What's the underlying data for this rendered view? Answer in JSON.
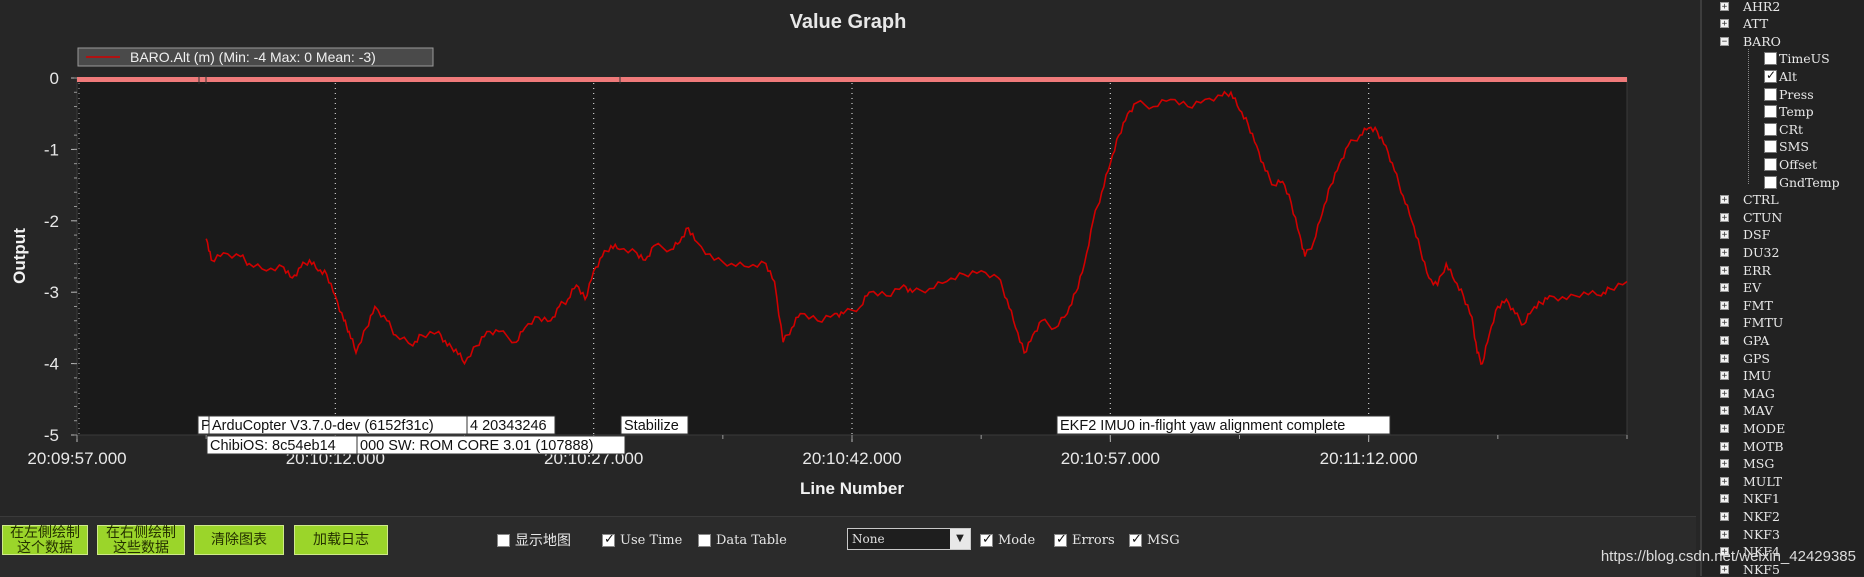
{
  "graph": {
    "title": "Value Graph",
    "xlabel": "Line Number",
    "ylabel": "Output",
    "legend": "BARO.Alt (m) (Min: -4 Max: 0 Mean: -3)",
    "annotations": [
      {
        "text": "P",
        "row": 1
      },
      {
        "text": "ArduCopter V3.7.0-dev (6152f31c)",
        "row": 1
      },
      {
        "text": "4 20343246",
        "row": 1
      },
      {
        "text": "ChibiOS: 8c54eb14",
        "row": 2
      },
      {
        "text": "000 SW: ROM CORE 3.01 (107888)",
        "row": 2
      },
      {
        "text": "Stabilize",
        "row": 1
      },
      {
        "text": "EKF2 IMU0 in-flight yaw alignment complete",
        "row": 1
      }
    ]
  },
  "chart_data": {
    "type": "line",
    "title": "Value Graph",
    "xlabel": "Line Number",
    "ylabel": "Output",
    "x_ticks": [
      "20:09:57.000",
      "20:10:12.000",
      "20:10:27.000",
      "20:10:42.000",
      "20:10:57.000",
      "20:11:12.000"
    ],
    "y_ticks": [
      "0",
      "-1",
      "-2",
      "-3",
      "-4",
      "-5"
    ],
    "ylim": [
      -5,
      0
    ],
    "xlim": [
      0,
      90
    ],
    "grid": true,
    "legend_position": "top-left",
    "series": [
      {
        "name": "BARO.Alt (m) (Min: -4 Max: 0 Mean: -3)",
        "color": "#d10000",
        "points": [
          [
            7.5,
            -2.25
          ],
          [
            7.8,
            -2.55
          ],
          [
            8.5,
            -2.45
          ],
          [
            9.5,
            -2.5
          ],
          [
            10,
            -2.6
          ],
          [
            11,
            -2.7
          ],
          [
            12,
            -2.65
          ],
          [
            12.5,
            -2.8
          ],
          [
            13,
            -2.65
          ],
          [
            13.5,
            -2.55
          ],
          [
            14,
            -2.7
          ],
          [
            14.5,
            -2.75
          ],
          [
            15,
            -3.05
          ],
          [
            15.5,
            -3.4
          ],
          [
            15.8,
            -3.55
          ],
          [
            16.2,
            -3.85
          ],
          [
            16.8,
            -3.5
          ],
          [
            17.3,
            -3.2
          ],
          [
            18,
            -3.4
          ],
          [
            18.5,
            -3.6
          ],
          [
            19.5,
            -3.75
          ],
          [
            20,
            -3.6
          ],
          [
            21,
            -3.55
          ],
          [
            21.5,
            -3.75
          ],
          [
            22,
            -3.8
          ],
          [
            22.5,
            -4.0
          ],
          [
            23.2,
            -3.75
          ],
          [
            23.8,
            -3.55
          ],
          [
            24.5,
            -3.55
          ],
          [
            25.5,
            -3.7
          ],
          [
            26,
            -3.5
          ],
          [
            26.8,
            -3.35
          ],
          [
            27.5,
            -3.4
          ],
          [
            28,
            -3.2
          ],
          [
            28.5,
            -3.1
          ],
          [
            29,
            -2.9
          ],
          [
            29.5,
            -3.1
          ],
          [
            30,
            -2.7
          ],
          [
            30.5,
            -2.5
          ],
          [
            31,
            -2.35
          ],
          [
            31.5,
            -2.4
          ],
          [
            32.5,
            -2.45
          ],
          [
            33,
            -2.55
          ],
          [
            33.5,
            -2.35
          ],
          [
            34.5,
            -2.4
          ],
          [
            35,
            -2.3
          ],
          [
            35.5,
            -2.1
          ],
          [
            36,
            -2.3
          ],
          [
            37,
            -2.55
          ],
          [
            38,
            -2.6
          ],
          [
            39,
            -2.65
          ],
          [
            40,
            -2.6
          ],
          [
            40.5,
            -2.85
          ],
          [
            41,
            -3.7
          ],
          [
            41.5,
            -3.5
          ],
          [
            42,
            -3.3
          ],
          [
            43,
            -3.4
          ],
          [
            44,
            -3.3
          ],
          [
            44.5,
            -3.3
          ],
          [
            45.5,
            -3.2
          ],
          [
            46,
            -3.0
          ],
          [
            47,
            -3.05
          ],
          [
            48,
            -2.9
          ],
          [
            48.5,
            -3.0
          ],
          [
            49.5,
            -2.95
          ],
          [
            50.5,
            -2.85
          ],
          [
            51.5,
            -2.75
          ],
          [
            52.5,
            -2.7
          ],
          [
            53.5,
            -2.8
          ],
          [
            54,
            -3.1
          ],
          [
            54.5,
            -3.5
          ],
          [
            55,
            -3.85
          ],
          [
            55.5,
            -3.6
          ],
          [
            56,
            -3.4
          ],
          [
            56.8,
            -3.5
          ],
          [
            57.5,
            -3.3
          ],
          [
            58,
            -3.0
          ],
          [
            58.5,
            -2.6
          ],
          [
            59,
            -2.0
          ],
          [
            59.5,
            -1.6
          ],
          [
            60,
            -1.2
          ],
          [
            60.5,
            -0.8
          ],
          [
            61,
            -0.5
          ],
          [
            61.5,
            -0.35
          ],
          [
            62.5,
            -0.4
          ],
          [
            63.5,
            -0.3
          ],
          [
            64.5,
            -0.4
          ],
          [
            65.5,
            -0.3
          ],
          [
            66.5,
            -0.25
          ],
          [
            67,
            -0.2
          ],
          [
            67.5,
            -0.45
          ],
          [
            68,
            -0.65
          ],
          [
            68.5,
            -0.95
          ],
          [
            69,
            -1.3
          ],
          [
            69.5,
            -1.5
          ],
          [
            70,
            -1.45
          ],
          [
            70.5,
            -1.75
          ],
          [
            71,
            -2.2
          ],
          [
            71.3,
            -2.5
          ],
          [
            71.8,
            -2.3
          ],
          [
            72.3,
            -1.9
          ],
          [
            72.8,
            -1.5
          ],
          [
            73.3,
            -1.2
          ],
          [
            73.8,
            -0.95
          ],
          [
            74.5,
            -0.8
          ],
          [
            75,
            -0.7
          ],
          [
            75.5,
            -0.75
          ],
          [
            76,
            -0.95
          ],
          [
            76.5,
            -1.3
          ],
          [
            77,
            -1.65
          ],
          [
            77.5,
            -2.0
          ],
          [
            78,
            -2.4
          ],
          [
            78.5,
            -2.8
          ],
          [
            79,
            -2.9
          ],
          [
            79.5,
            -2.6
          ],
          [
            80,
            -2.85
          ],
          [
            80.5,
            -3.05
          ],
          [
            81,
            -3.35
          ],
          [
            81.3,
            -3.85
          ],
          [
            81.6,
            -4.0
          ],
          [
            82,
            -3.6
          ],
          [
            82.5,
            -3.2
          ],
          [
            83,
            -3.1
          ],
          [
            83.5,
            -3.3
          ],
          [
            84,
            -3.45
          ],
          [
            84.5,
            -3.25
          ],
          [
            85,
            -3.15
          ],
          [
            85.5,
            -3.05
          ],
          [
            86.5,
            -3.1
          ],
          [
            87.5,
            -3.0
          ],
          [
            88.5,
            -3.05
          ],
          [
            89,
            -2.95
          ],
          [
            90,
            -2.85
          ]
        ]
      }
    ]
  },
  "bottom": {
    "buttons": [
      {
        "line1": "在左側绘制",
        "line2": "这个数据"
      },
      {
        "line1": "在右侧绘制",
        "line2": "这些数据"
      },
      {
        "line1": "清除图表",
        "line2": ""
      },
      {
        "line1": "加载日志",
        "line2": ""
      }
    ],
    "show_map": {
      "label": "显示地图",
      "checked": false
    },
    "use_time": {
      "label": "Use Time",
      "checked": true
    },
    "data_table": {
      "label": "Data Table",
      "checked": false
    },
    "combo_value": "None",
    "mode": {
      "label": "Mode",
      "checked": true
    },
    "errors": {
      "label": "Errors",
      "checked": true
    },
    "msg": {
      "label": "MSG",
      "checked": true
    }
  },
  "watermark": "https://blog.csdn.net/weixin_42429385",
  "tree": {
    "top_items": [
      "AHR2",
      "ATT",
      "BARO"
    ],
    "baro_children": [
      {
        "label": "TimeUS",
        "checked": false
      },
      {
        "label": "Alt",
        "checked": true
      },
      {
        "label": "Press",
        "checked": false
      },
      {
        "label": "Temp",
        "checked": false
      },
      {
        "label": "CRt",
        "checked": false
      },
      {
        "label": "SMS",
        "checked": false
      },
      {
        "label": "Offset",
        "checked": false
      },
      {
        "label": "GndTemp",
        "checked": false
      }
    ],
    "bottom_items": [
      "CTRL",
      "CTUN",
      "DSF",
      "DU32",
      "ERR",
      "EV",
      "FMT",
      "FMTU",
      "GPA",
      "GPS",
      "IMU",
      "MAG",
      "MAV",
      "MODE",
      "MOTB",
      "MSG",
      "MULT",
      "NKF1",
      "NKF2",
      "NKF3",
      "NKF4",
      "NKF5"
    ]
  }
}
